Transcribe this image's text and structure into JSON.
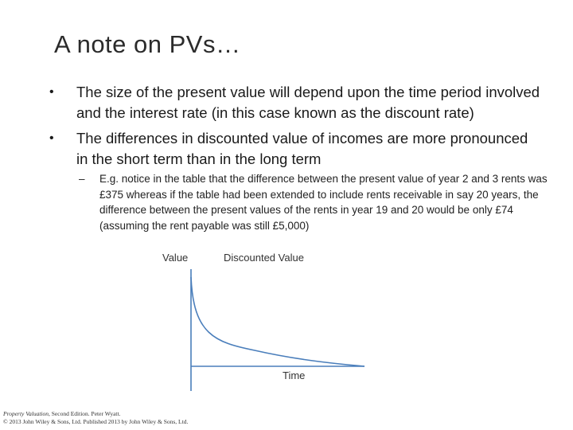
{
  "slide": {
    "title": "A note on PVs…",
    "bullets": [
      "The size of the present value will depend upon the time period involved and the interest rate (in this case known as the discount rate)",
      "The differences in discounted value of incomes are more pronounced in the short term than in the long term"
    ],
    "sub_bullet": "E.g. notice in the table that the difference between the present value of year 2 and 3 rents was £375 whereas if the table had been extended to include rents receivable in say 20 years, the difference between the present values of the rents in year 19 and 20 would be only £74 (assuming the rent payable was still £5,000)",
    "bullet_symbol": "•",
    "dash_symbol": "–"
  },
  "diagram": {
    "y_label": "Value",
    "curve_label": "Discounted Value",
    "x_label": "Time",
    "curve_color": "#4a7ebb",
    "axis_color": "#4a7ebb"
  },
  "footer": {
    "book_title": "Property Valuation",
    "edition": ", Second Edition. Peter Wyatt.",
    "copyright": "© 2013 John Wiley & Sons, Ltd. Published 2013 by John Wiley & Sons, Ltd."
  }
}
